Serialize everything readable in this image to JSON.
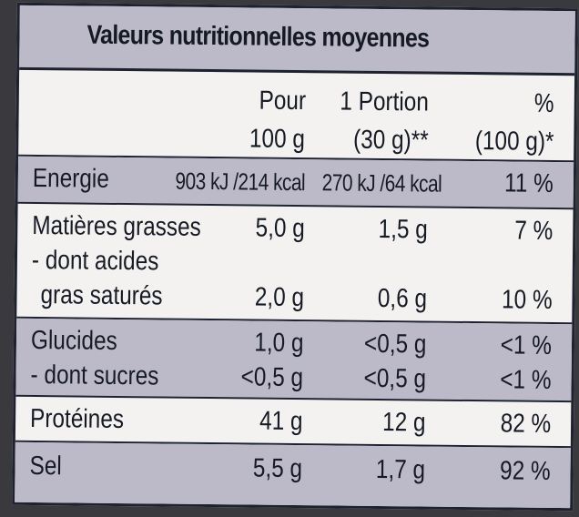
{
  "title": "Valeurs nutritionnelles moyennes",
  "headers": {
    "col1_line1": "Pour",
    "col1_line2": "100 g",
    "col2_line1": "1 Portion",
    "col2_line2": "(30 g)**",
    "col3_line1": "%",
    "col3_line2": "(100 g)*"
  },
  "rows": [
    {
      "name": "Energie",
      "per100": "903 kJ /214 kcal",
      "portion": "270 kJ /64 kcal",
      "pct": "11 %"
    },
    {
      "name": "Matières grasses",
      "per100": "5,0 g",
      "portion": "1,5 g",
      "pct": "7 %"
    },
    {
      "name": "- dont acides",
      "per100": "",
      "portion": "",
      "pct": ""
    },
    {
      "name": "gras saturés",
      "per100": "2,0 g",
      "portion": "0,6 g",
      "pct": "10 %"
    },
    {
      "name": "Glucides",
      "per100": "1,0 g",
      "portion": "<0,5 g",
      "pct": "<1 %"
    },
    {
      "name": "- dont sucres",
      "per100": "<0,5 g",
      "portion": "<0,5 g",
      "pct": "<1 %"
    },
    {
      "name": "Protéines",
      "per100": "41 g",
      "portion": "12 g",
      "pct": "82 %"
    },
    {
      "name": "Sel",
      "per100": "5,5 g",
      "portion": "1,7 g",
      "pct": "92 %"
    }
  ],
  "colors": {
    "band": "#bcbac8",
    "paper": "#f3f2f0",
    "ink": "#161a24",
    "background": "#3a3a3e"
  }
}
